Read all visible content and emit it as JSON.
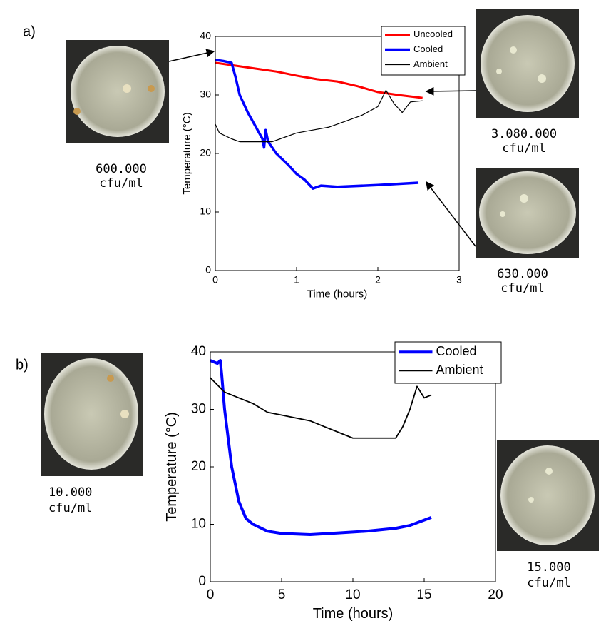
{
  "chart_data": [
    {
      "type": "line",
      "panel_label": "a)",
      "xlabel": "Time (hours)",
      "ylabel": "Temperature (°C)",
      "xlim": [
        0,
        3
      ],
      "xticks": [
        0,
        1,
        2,
        3
      ],
      "ylim": [
        0,
        40
      ],
      "yticks": [
        0,
        10,
        20,
        30,
        40
      ],
      "legend": "upper right",
      "grid": false,
      "series": [
        {
          "name": "Uncooled",
          "color": "#ff0000",
          "linewidth": 3,
          "x": [
            0,
            0.25,
            0.5,
            0.75,
            1,
            1.25,
            1.5,
            1.75,
            2,
            2.25,
            2.55
          ],
          "values": [
            35.5,
            35,
            34.5,
            34,
            33.3,
            32.7,
            32.3,
            31.5,
            30.5,
            30,
            29.5
          ]
        },
        {
          "name": "Cooled",
          "color": "#0000ff",
          "linewidth": 3.5,
          "x": [
            0,
            0.1,
            0.2,
            0.25,
            0.3,
            0.4,
            0.5,
            0.58,
            0.6,
            0.62,
            0.65,
            0.75,
            0.9,
            1,
            1.1,
            1.2,
            1.3,
            1.5,
            2,
            2.5
          ],
          "values": [
            36,
            35.8,
            35.5,
            33,
            30,
            27,
            24.5,
            22.5,
            21,
            24,
            22,
            20,
            18,
            16.5,
            15.5,
            14,
            14.5,
            14.3,
            14.6,
            15
          ]
        },
        {
          "name": "Ambient",
          "color": "#000000",
          "linewidth": 1.2,
          "x": [
            0,
            0.05,
            0.2,
            0.3,
            0.7,
            0.8,
            1,
            1.2,
            1.4,
            1.6,
            1.8,
            2,
            2.1,
            2.2,
            2.3,
            2.4,
            2.55
          ],
          "values": [
            25,
            23.5,
            22.5,
            22,
            22,
            22.5,
            23.5,
            24,
            24.5,
            25.5,
            26.5,
            28,
            30.8,
            28.5,
            27,
            28.8,
            29
          ]
        }
      ],
      "annotations": [
        [
          "600.000",
          "cfu/ml"
        ],
        [
          "3.080.000",
          "cfu/ml"
        ],
        [
          "630.000",
          "cfu/ml"
        ]
      ]
    },
    {
      "type": "line",
      "panel_label": "b)",
      "xlabel": "Time (hours)",
      "ylabel": "Temperature (°C)",
      "xlim": [
        0,
        20
      ],
      "xticks": [
        0,
        5,
        10,
        15,
        20
      ],
      "ylim": [
        0,
        40
      ],
      "yticks": [
        0,
        10,
        20,
        30,
        40
      ],
      "legend": "upper right",
      "grid": false,
      "series": [
        {
          "name": "Cooled",
          "color": "#0000ff",
          "linewidth": 4,
          "x": [
            0,
            0.5,
            0.7,
            0.8,
            1,
            1.5,
            2,
            2.5,
            3,
            4,
            5,
            7,
            9,
            11,
            13,
            14,
            15.5
          ],
          "values": [
            38.5,
            38,
            38.5,
            36,
            30,
            20,
            14,
            11,
            10,
            8.8,
            8.4,
            8.2,
            8.5,
            8.8,
            9.3,
            9.8,
            11.2
          ]
        },
        {
          "name": "Ambient",
          "color": "#000000",
          "linewidth": 1.8,
          "x": [
            0,
            1,
            2,
            3,
            4,
            5,
            7,
            8,
            10,
            13,
            13.5,
            14,
            14.5,
            15,
            15.5
          ],
          "values": [
            35.5,
            33,
            32,
            31,
            29.5,
            29,
            28,
            27,
            25,
            25,
            27,
            30,
            34,
            32,
            32.5
          ]
        }
      ],
      "annotations": [
        [
          "10.000",
          "cfu/ml"
        ],
        [
          "15.000",
          "cfu/ml"
        ]
      ]
    }
  ]
}
